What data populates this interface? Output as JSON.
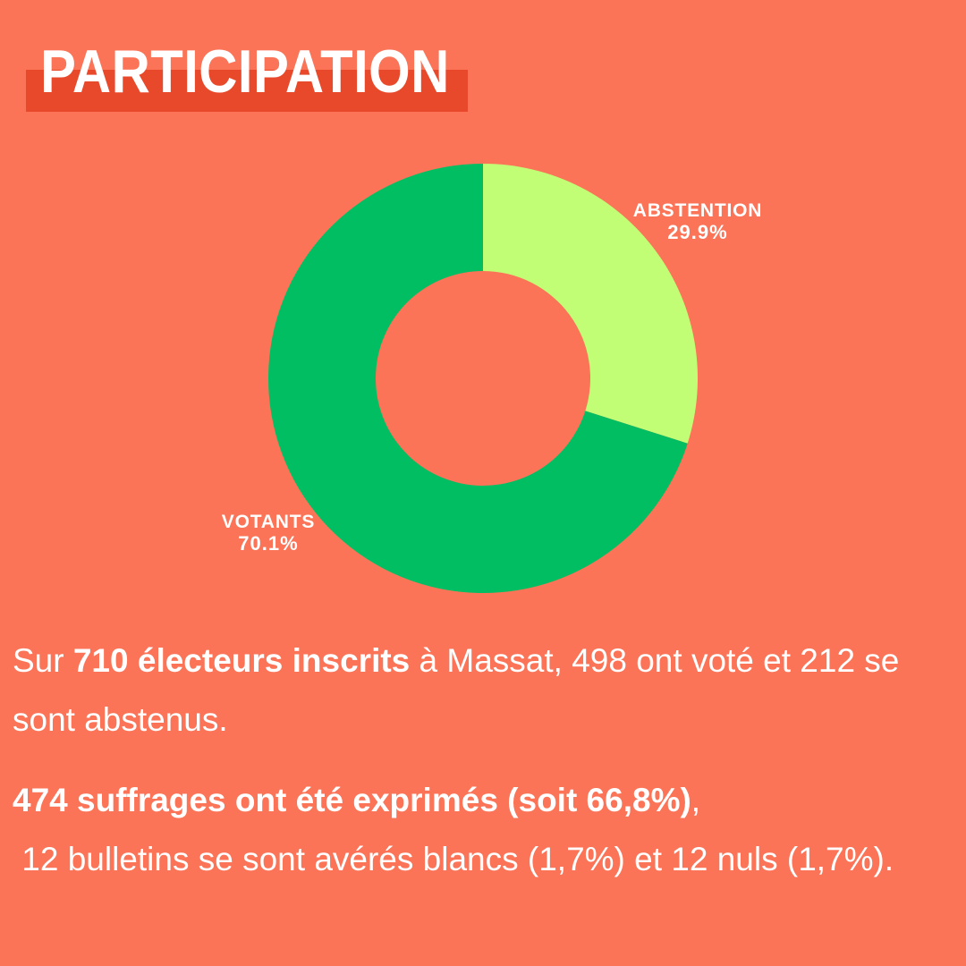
{
  "colors": {
    "background": "#FB7458",
    "title_highlight": "#E8492B",
    "text": "#FFFFFF",
    "votants_green": "#02BE63",
    "abstention_lime": "#C1FE76"
  },
  "header": {
    "title": "PARTICIPATION"
  },
  "chart_data": {
    "type": "pie",
    "variant": "donut",
    "title": "PARTICIPATION",
    "inner_radius_ratio": 0.5,
    "start_angle_deg": 0,
    "direction": "clockwise",
    "legend_position": "outside-labels",
    "slices": [
      {
        "label": "ABSTENTION",
        "value": 29.9,
        "pct_label": "29.9%",
        "color": "#C1FE76"
      },
      {
        "label": "VOTANTS",
        "value": 70.1,
        "pct_label": "70.1%",
        "color": "#02BE63"
      }
    ]
  },
  "paragraphs": [
    {
      "segments": [
        {
          "text": "Sur ",
          "bold": false
        },
        {
          "text": "710 électeurs inscrits",
          "bold": true
        },
        {
          "text": " à Massat, 498 ont voté et 212 se sont abstenus.",
          "bold": false
        }
      ]
    },
    {
      "segments": [
        {
          "text": "474 suffrages ont été exprimés (soit 66,8%)",
          "bold": true
        },
        {
          "text": ",",
          "bold": false
        }
      ]
    },
    {
      "segments": [
        {
          "text": " 12 bulletins se sont avérés blancs (1,7%) et 12 nuls (1,7%).",
          "bold": false
        }
      ]
    }
  ]
}
